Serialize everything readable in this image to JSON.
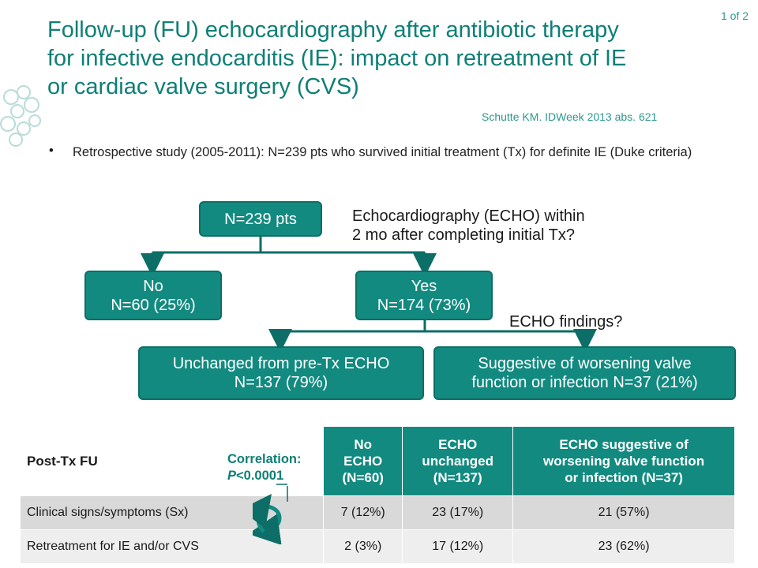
{
  "page_number": "1 of 2",
  "title": "Follow-up (FU) echocardiography after antibiotic therapy for infective endocarditis (IE): impact on retreatment of IE or cardiac valve surgery (CVS)",
  "citation": "Schutte KM. IDWeek 2013 abs. 621",
  "bullet": {
    "marker": "•",
    "text": "Retrospective study (2005-2011): N=239 pts who survived initial treatment (Tx) for definite IE (Duke criteria)"
  },
  "flow": {
    "root": "N=239 pts",
    "question1_line1": "Echocardiography (ECHO) within",
    "question1_line2": "2 mo after completing initial Tx?",
    "no_line1": "No",
    "no_line2": "N=60 (25%)",
    "yes_line1": "Yes",
    "yes_line2": "N=174 (73%)",
    "question2": "ECHO findings?",
    "unchanged_line1": "Unchanged from pre-Tx ECHO",
    "unchanged_line2": "N=137 (79%)",
    "worse_line1": "Suggestive of worsening valve",
    "worse_line2": "function or infection N=37 (21%)"
  },
  "correlation": {
    "line1": "Correlation:",
    "p_label": "P",
    "p_value": "<0.0001"
  },
  "table": {
    "corner": "Post-Tx FU",
    "headers": [
      [
        "No",
        "ECHO",
        "(N=60)"
      ],
      [
        "ECHO",
        "unchanged",
        "(N=137)"
      ],
      [
        "ECHO suggestive of",
        "worsening valve function",
        "or infection (N=37)"
      ]
    ],
    "rows": [
      {
        "label": "Clinical signs/symptoms (Sx)",
        "values": [
          "7 (12%)",
          "23 (17%)",
          "21 (57%)"
        ]
      },
      {
        "label": "Retreatment for IE and/or CVS",
        "values": [
          "2 (3%)",
          "17 (12%)",
          "23 (62%)"
        ]
      }
    ]
  },
  "colors": {
    "teal": "#138a80",
    "teal_dark": "#0e7f76"
  }
}
